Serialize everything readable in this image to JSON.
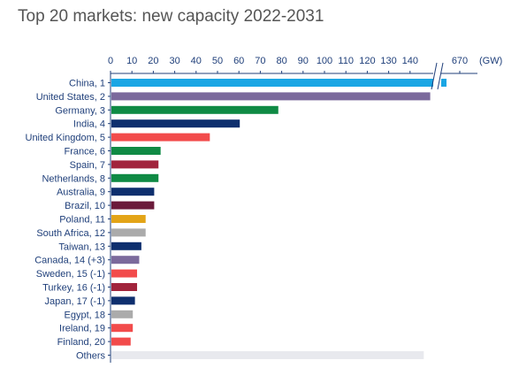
{
  "chart_data": {
    "type": "bar",
    "orientation": "horizontal",
    "title": "Top 20 markets: new capacity 2022-2031",
    "unit_label": "(GW)",
    "axis_ticks": [
      "0",
      "10",
      "20",
      "30",
      "40",
      "50",
      "60",
      "70",
      "80",
      "90",
      "100",
      "110",
      "120",
      "130",
      "140",
      "670"
    ],
    "axis_break": true,
    "xlim": [
      0,
      150
    ],
    "categories": [
      "China, 1",
      "United States, 2",
      "Germany, 3",
      "India, 4",
      "United Kingdom, 5",
      "France, 6",
      "Spain, 7",
      "Netherlands, 8",
      "Australia, 9",
      "Brazil, 10",
      "Poland, 11",
      "South Africa, 12",
      "Taiwan, 13",
      "Canada, 14 (+3)",
      "Sweden, 15 (-1)",
      "Turkey, 16 (-1)",
      "Japan, 17 (-1)",
      "Egypt, 18",
      "Ireland, 19",
      "Finland, 20",
      "Others"
    ],
    "values": [
      670,
      149,
      78,
      60,
      46,
      23,
      22,
      22,
      20,
      20,
      16,
      16,
      14,
      13,
      12,
      12,
      11,
      10,
      10,
      9,
      146
    ],
    "colors": [
      "#1aa6e4",
      "#7b6a9c",
      "#0f8a44",
      "#0e2f6e",
      "#f24b4b",
      "#0f8a44",
      "#a1243c",
      "#0f8a44",
      "#0e2f6e",
      "#6b1a3a",
      "#e3a417",
      "#ababab",
      "#0e2f6e",
      "#7b6a9c",
      "#f24b4b",
      "#a1243c",
      "#0e2f6e",
      "#ababab",
      "#f24b4b",
      "#f24b4b",
      "#e8e9ee"
    ]
  }
}
